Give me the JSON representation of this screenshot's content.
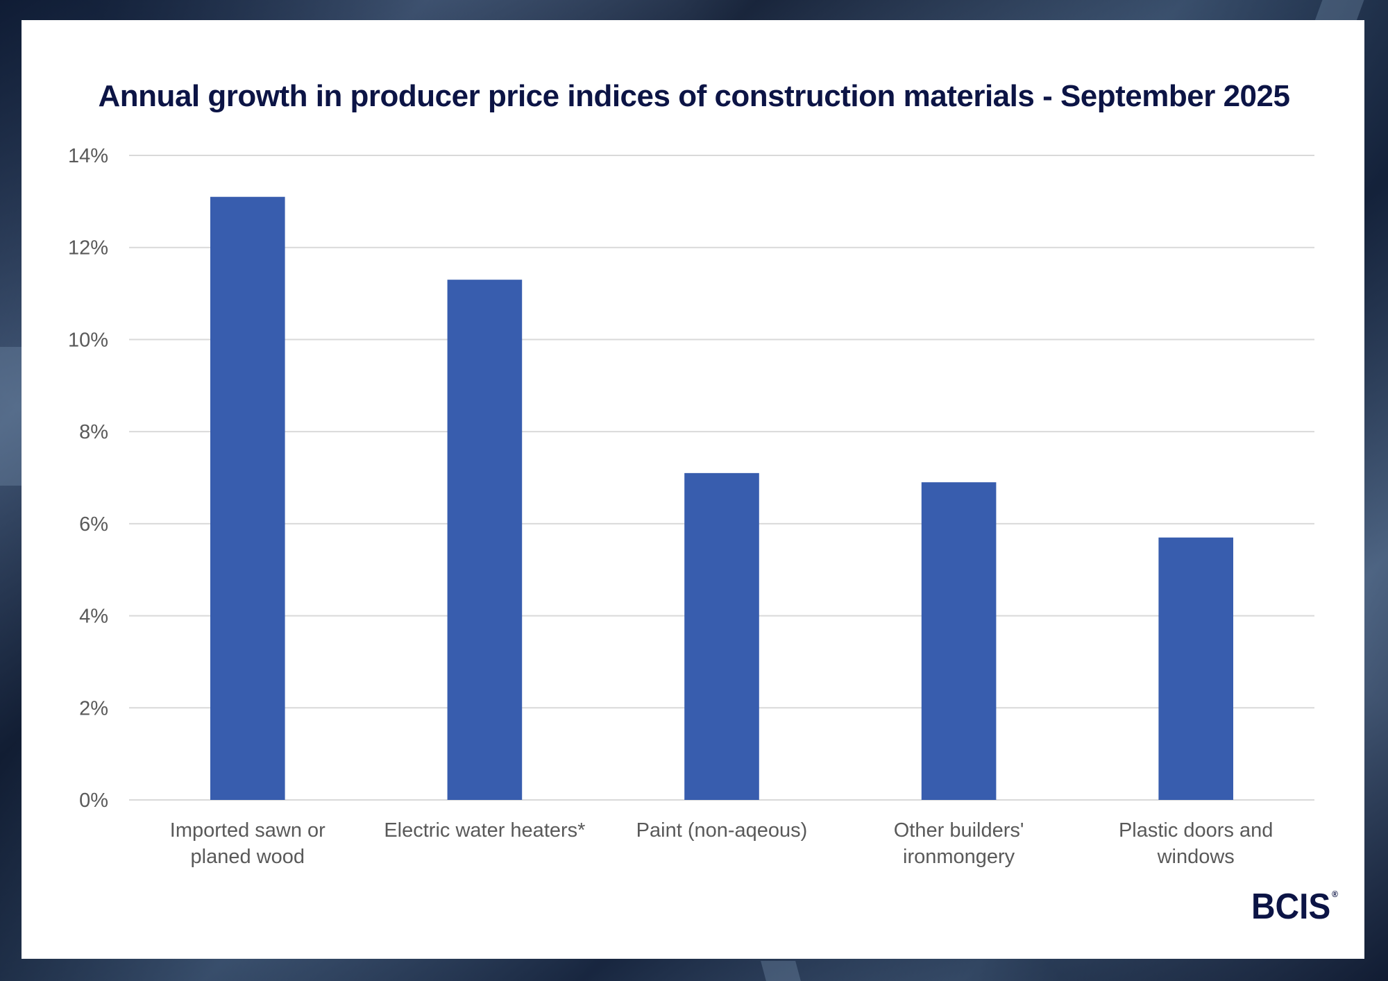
{
  "chart_data": {
    "type": "bar",
    "title": "Annual growth in producer price indices of construction materials - September 2025",
    "xlabel": "",
    "ylabel": "",
    "categories": [
      [
        "Imported sawn or",
        "planed wood"
      ],
      [
        "Electric water heaters*"
      ],
      [
        "Paint (non-aqeous)"
      ],
      [
        "Other builders'",
        "ironmongery"
      ],
      [
        "Plastic doors and",
        "windows"
      ]
    ],
    "values": [
      13.1,
      11.3,
      7.1,
      6.9,
      5.7
    ],
    "unit": "%",
    "ylim": [
      0,
      14
    ],
    "yticks": [
      0,
      2,
      4,
      6,
      8,
      10,
      12,
      14
    ],
    "ytick_labels": [
      "0%",
      "2%",
      "4%",
      "6%",
      "8%",
      "10%",
      "12%",
      "14%"
    ],
    "grid": true,
    "legend": "none",
    "bar_color": "#385dae"
  },
  "branding": {
    "logo_text": "BCIS",
    "logo_mark": "®"
  },
  "colors": {
    "title": "#0c1445",
    "gridline": "#d9d9d9",
    "axis_text": "#595959"
  }
}
